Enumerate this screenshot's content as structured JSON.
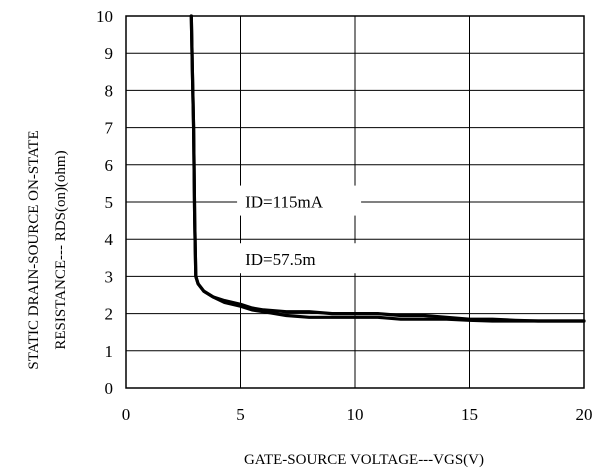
{
  "chart_data": {
    "type": "line",
    "xlabel": "GATE-SOURCE  VOLTAGE---VGS(V)",
    "ylabel_line1": "STATIC DRAIN-SOURCE  ON-STATE",
    "ylabel_line2": "RESISTANCE--- RDS(on)(ohm)",
    "xlim": [
      0,
      20
    ],
    "ylim": [
      0,
      10
    ],
    "x_ticks": [
      "0",
      "5",
      "10",
      "15",
      "20"
    ],
    "y_ticks": [
      "0",
      "1",
      "2",
      "3",
      "4",
      "5",
      "6",
      "7",
      "8",
      "9",
      "10"
    ],
    "grid": true,
    "annotations": [
      "ID=115mA",
      "ID=57.5m"
    ],
    "series": [
      {
        "name": "ID=115mA",
        "x": [
          2.85,
          2.9,
          2.95,
          3.0,
          3.05,
          3.15,
          3.4,
          3.8,
          4.3,
          5.0,
          5.5,
          6.0,
          7.0,
          8.0,
          9.0,
          10.0,
          11.0,
          12.0,
          13.0,
          14.0,
          15.0,
          16.0,
          17.0,
          18.0,
          19.0,
          20.0
        ],
        "y": [
          10.0,
          8.5,
          7.0,
          4.5,
          3.0,
          2.8,
          2.6,
          2.45,
          2.35,
          2.25,
          2.15,
          2.1,
          2.05,
          2.05,
          2.0,
          2.0,
          2.0,
          1.95,
          1.95,
          1.9,
          1.85,
          1.85,
          1.82,
          1.8,
          1.8,
          1.8
        ]
      },
      {
        "name": "ID=57.5m",
        "x": [
          2.85,
          2.9,
          2.95,
          3.0,
          3.05,
          3.15,
          3.4,
          3.8,
          4.3,
          5.0,
          5.5,
          6.0,
          7.0,
          8.0,
          9.0,
          10.0,
          11.0,
          12.0,
          13.0,
          14.0,
          15.0,
          16.0,
          17.0,
          18.0,
          19.0,
          20.0
        ],
        "y": [
          10.0,
          8.5,
          7.0,
          4.5,
          3.0,
          2.8,
          2.6,
          2.45,
          2.3,
          2.2,
          2.1,
          2.05,
          1.95,
          1.9,
          1.9,
          1.9,
          1.9,
          1.85,
          1.85,
          1.85,
          1.82,
          1.8,
          1.8,
          1.8,
          1.8,
          1.8
        ]
      }
    ]
  }
}
